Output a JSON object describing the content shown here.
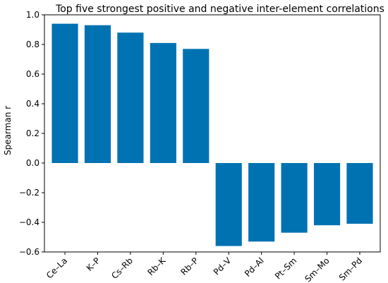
{
  "chart_data": {
    "type": "bar",
    "title": "Top five strongest positive and negative inter-element correlations",
    "xlabel": "",
    "ylabel": "Spearman r",
    "categories": [
      "Ce–La",
      "K–P",
      "Cs–Rb",
      "Rb–K",
      "Rb–P",
      "Pd–V",
      "Pd–Al",
      "Pt–Sm",
      "Sm–Mo",
      "Sm–Pd"
    ],
    "values": [
      0.94,
      0.93,
      0.88,
      0.81,
      0.77,
      -0.56,
      -0.53,
      -0.47,
      -0.42,
      -0.41
    ],
    "ylim": [
      -0.6,
      1.0
    ],
    "yticks": [
      -0.6,
      -0.4,
      -0.2,
      0.0,
      0.2,
      0.4,
      0.6,
      0.8,
      1.0
    ],
    "ytick_labels": [
      "−0.6",
      "−0.4",
      "−0.2",
      "0.0",
      "0.2",
      "0.4",
      "0.6",
      "0.8",
      "1.0"
    ],
    "grid": false,
    "bar_color": "#0072B2"
  }
}
